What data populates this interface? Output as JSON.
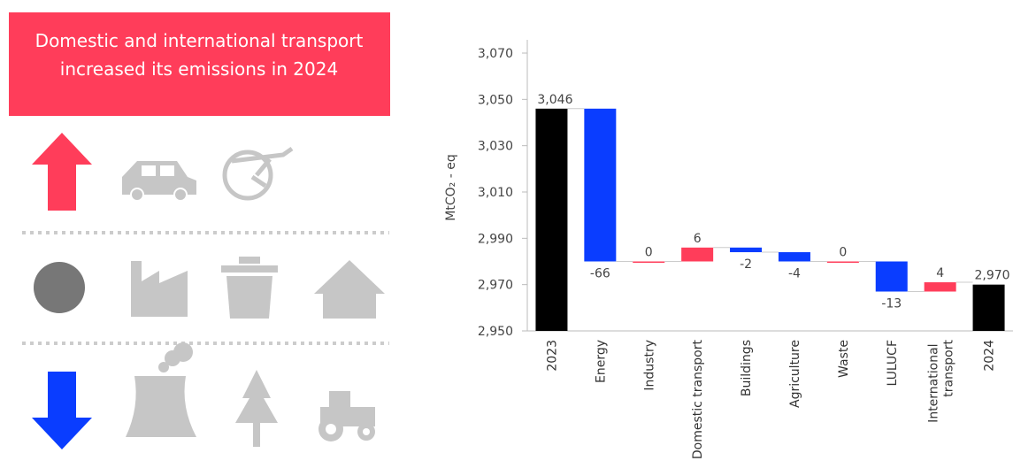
{
  "infographic": {
    "title_lines": [
      "Domestic and international transport",
      "increased its emissions in 2024"
    ]
  },
  "chart_data": {
    "type": "waterfall",
    "ylabel": "MtCO₂ - eq",
    "categories": [
      "2023",
      "Energy",
      "Industry",
      "Domestic transport",
      "Buildings",
      "Agriculture",
      "Waste",
      "LULUCF",
      "International transport",
      "2024"
    ],
    "values": [
      3046,
      -66,
      0,
      6,
      -2,
      -4,
      0,
      -13,
      4,
      2970
    ],
    "value_labels": [
      "3,046",
      "-66",
      "0",
      "6",
      "-2",
      "-4",
      "0",
      "-13",
      "4",
      "2,970"
    ],
    "total_color": "#000000",
    "increase_color": "#ff3d5a",
    "decrease_color": "#0a3dff",
    "ylim": [
      2950,
      3070
    ],
    "yticks": [
      {
        "value": 2950,
        "label": "2,950"
      },
      {
        "value": 2970,
        "label": "2,970"
      },
      {
        "value": 2990,
        "label": "2,990"
      },
      {
        "value": 3010,
        "label": "3,010"
      },
      {
        "value": 3030,
        "label": "3,030"
      },
      {
        "value": 3050,
        "label": "3,050"
      },
      {
        "value": 3070,
        "label": "3,070"
      }
    ],
    "grid": false
  }
}
